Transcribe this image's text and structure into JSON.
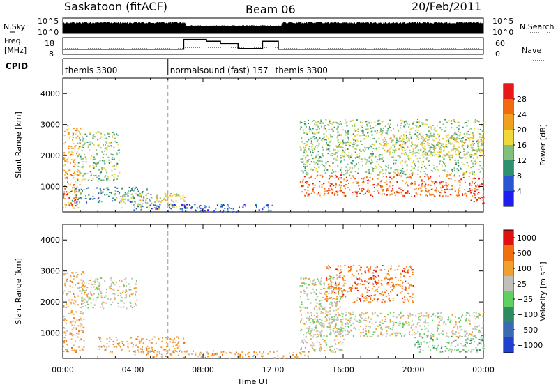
{
  "header": {
    "station": "Saskatoon (fitACF)",
    "beam": "Beam 06",
    "date": "20/Feb/2011"
  },
  "nsky_panel": {
    "left_label": "N.Sky",
    "right_label": "N.Search",
    "left_ticks": [
      "10^5",
      "10^0"
    ],
    "right_ticks": [
      "10^5",
      "10^0"
    ]
  },
  "freq_panel": {
    "left_label_line1": "Freq.",
    "left_label_line2": "[MHz]",
    "right_label": "Nave",
    "left_ticks": [
      "18",
      "8"
    ],
    "right_ticks": [
      "60",
      "0"
    ],
    "freq_steps": [
      {
        "start": 0.0,
        "end": 6.9,
        "value": 10.4
      },
      {
        "start": 6.9,
        "end": 8.2,
        "value": 16.8
      },
      {
        "start": 8.2,
        "end": 9.0,
        "value": 15.6
      },
      {
        "start": 9.0,
        "end": 10.0,
        "value": 14.2
      },
      {
        "start": 10.0,
        "end": 11.4,
        "value": 10.8
      },
      {
        "start": 11.4,
        "end": 12.3,
        "value": 15.6
      },
      {
        "start": 12.3,
        "end": 24.0,
        "value": 10.4
      }
    ]
  },
  "cpid": {
    "label": "CPID",
    "segments": [
      {
        "name": "themis 3300",
        "start": 0.0,
        "end": 6.0
      },
      {
        "name": "normalsound (fast) 157",
        "start": 6.0,
        "end": 12.0
      },
      {
        "name": "themis 3300",
        "start": 12.0,
        "end": 24.0
      }
    ]
  },
  "chart_data": [
    {
      "type": "heatmap",
      "panel": "power",
      "ylabel": "Slant Range [km]",
      "ylim": [
        180,
        4500
      ],
      "yticks": [
        "1000",
        "2000",
        "3000",
        "4000"
      ],
      "xlim_hours": [
        0,
        24
      ],
      "colorbar": {
        "label": "Power [dB]",
        "ticks": [
          "4",
          "8",
          "12",
          "16",
          "20",
          "24",
          "28"
        ],
        "colors": [
          "#1e1ef0",
          "#2a55d0",
          "#2d8f6e",
          "#7fc07f",
          "#f0d83a",
          "#f0a020",
          "#f06a10",
          "#e81818"
        ]
      },
      "scatter_regions": [
        {
          "t0": 0.0,
          "t1": 1.0,
          "r0": 300,
          "r1": 3000,
          "level": 5
        },
        {
          "t0": 0.0,
          "t1": 0.8,
          "r0": 400,
          "r1": 900,
          "level": 7
        },
        {
          "t0": 0.8,
          "t1": 3.2,
          "r0": 1200,
          "r1": 2800,
          "level": 3
        },
        {
          "t0": 0.5,
          "t1": 5.0,
          "r0": 500,
          "r1": 1000,
          "level": 2
        },
        {
          "t0": 3.0,
          "t1": 7.0,
          "r0": 300,
          "r1": 800,
          "level": 4
        },
        {
          "t0": 4.0,
          "t1": 12.0,
          "r0": 200,
          "r1": 450,
          "level": 1
        },
        {
          "t0": 13.5,
          "t1": 24.0,
          "r0": 700,
          "r1": 1400,
          "level": 6
        },
        {
          "t0": 13.5,
          "t1": 24.0,
          "r0": 1400,
          "r1": 3200,
          "level": 3
        },
        {
          "t0": 18.0,
          "t1": 24.0,
          "r0": 2000,
          "r1": 2700,
          "level": 4
        },
        {
          "t0": 23.2,
          "t1": 24.0,
          "r0": 400,
          "r1": 900,
          "level": 7
        }
      ]
    },
    {
      "type": "heatmap",
      "panel": "velocity",
      "ylabel": "Slant Range [km]",
      "ylim": [
        180,
        4500
      ],
      "yticks": [
        "1000",
        "2000",
        "3000",
        "4000"
      ],
      "xlabel": "Time UT",
      "xticks": [
        "00:00",
        "04:00",
        "08:00",
        "12:00",
        "16:00",
        "20:00",
        "00:00"
      ],
      "xlim_hours": [
        0,
        24
      ],
      "colorbar": {
        "label": "Velocity [m s⁻¹]",
        "ticks": [
          "1000",
          "500",
          "100",
          "25",
          "−25",
          "−100",
          "−500",
          "−1000"
        ],
        "colors": [
          "#2040d0",
          "#3a6ab0",
          "#2e8a60",
          "#60d060",
          "#c0c0b8",
          "#f0a030",
          "#f07010",
          "#e01010"
        ]
      },
      "scatter_regions": [
        {
          "t0": 0.0,
          "t1": 1.2,
          "r0": 400,
          "r1": 3000,
          "level": 5
        },
        {
          "t0": 1.0,
          "t1": 4.2,
          "r0": 1800,
          "r1": 2800,
          "level": 4
        },
        {
          "t0": 2.0,
          "t1": 7.0,
          "r0": 400,
          "r1": 900,
          "level": 5
        },
        {
          "t0": 4.0,
          "t1": 14.0,
          "r0": 200,
          "r1": 450,
          "level": 5
        },
        {
          "t0": 14.0,
          "t1": 24.0,
          "r0": 900,
          "r1": 1700,
          "level": 4
        },
        {
          "t0": 15.0,
          "t1": 20.0,
          "r0": 2000,
          "r1": 3200,
          "level": 6
        },
        {
          "t0": 13.5,
          "t1": 16.0,
          "r0": 400,
          "r1": 2800,
          "level": 4
        },
        {
          "t0": 20.0,
          "t1": 24.0,
          "r0": 400,
          "r1": 1000,
          "level": 3
        }
      ]
    }
  ]
}
